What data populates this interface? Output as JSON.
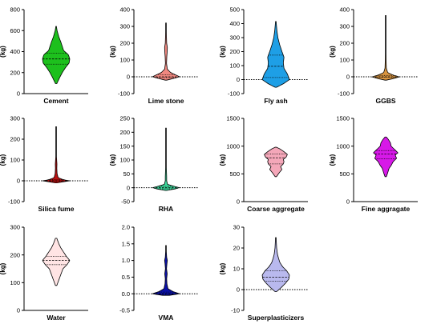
{
  "chart_data": [
    {
      "type": "violin",
      "xlabel": "Cement",
      "ylabel": "(kg)",
      "ylim": [
        0,
        800
      ],
      "yticks": [
        0,
        200,
        400,
        600,
        800
      ],
      "color": "#1dc01d",
      "range": [
        95,
        640
      ],
      "median": 330,
      "quartiles": [
        280,
        385
      ],
      "profile": [
        [
          95,
          0.05
        ],
        [
          150,
          0.25
        ],
        [
          200,
          0.45
        ],
        [
          250,
          0.7
        ],
        [
          290,
          0.95
        ],
        [
          330,
          1.0
        ],
        [
          370,
          0.9
        ],
        [
          410,
          0.55
        ],
        [
          450,
          0.45
        ],
        [
          490,
          0.35
        ],
        [
          540,
          0.2
        ],
        [
          600,
          0.07
        ],
        [
          640,
          0.02
        ]
      ]
    },
    {
      "type": "violin",
      "xlabel": "Lime stone",
      "ylabel": "(kg)",
      "ylim": [
        -100,
        400
      ],
      "yticks": [
        -100,
        0,
        100,
        200,
        300,
        400
      ],
      "color": "#f08880",
      "range": [
        -20,
        320
      ],
      "median": 0,
      "quartiles": [
        -5,
        12
      ],
      "profile": [
        [
          -20,
          0.05
        ],
        [
          -10,
          0.55
        ],
        [
          0,
          1.0
        ],
        [
          10,
          0.75
        ],
        [
          25,
          0.35
        ],
        [
          45,
          0.1
        ],
        [
          80,
          0.04
        ],
        [
          120,
          0.06
        ],
        [
          150,
          0.09
        ],
        [
          175,
          0.1
        ],
        [
          200,
          0.05
        ],
        [
          250,
          0.03
        ],
        [
          320,
          0.01
        ]
      ]
    },
    {
      "type": "violin",
      "xlabel": "Fly ash",
      "ylabel": "(kg)",
      "ylim": [
        -100,
        500
      ],
      "yticks": [
        -100,
        0,
        100,
        200,
        300,
        400,
        500
      ],
      "color": "#1e9fe6",
      "range": [
        -55,
        415
      ],
      "median": 95,
      "quartiles": [
        15,
        175
      ],
      "profile": [
        [
          -55,
          0.05
        ],
        [
          -30,
          0.55
        ],
        [
          0,
          1.0
        ],
        [
          40,
          0.85
        ],
        [
          80,
          0.6
        ],
        [
          120,
          0.55
        ],
        [
          160,
          0.6
        ],
        [
          200,
          0.45
        ],
        [
          250,
          0.28
        ],
        [
          300,
          0.15
        ],
        [
          350,
          0.08
        ],
        [
          415,
          0.02
        ]
      ]
    },
    {
      "type": "violin",
      "xlabel": "GGBS",
      "ylabel": "(kg)",
      "ylim": [
        -100,
        400
      ],
      "yticks": [
        -100,
        0,
        100,
        200,
        300,
        400
      ],
      "color": "#d99540",
      "range": [
        -20,
        365
      ],
      "median": 0,
      "quartiles": [
        -3,
        8
      ],
      "profile": [
        [
          -20,
          0.05
        ],
        [
          -8,
          0.7
        ],
        [
          0,
          1.0
        ],
        [
          10,
          0.55
        ],
        [
          25,
          0.15
        ],
        [
          50,
          0.05
        ],
        [
          100,
          0.03
        ],
        [
          200,
          0.015
        ],
        [
          365,
          0.01
        ]
      ]
    },
    {
      "type": "violin",
      "xlabel": "Silica fume",
      "ylabel": "(kg)",
      "ylim": [
        -100,
        300
      ],
      "yticks": [
        -100,
        0,
        100,
        200,
        300
      ],
      "color": "#b80f0f",
      "range": [
        -10,
        260
      ],
      "median": 0,
      "quartiles": [
        -2,
        5
      ],
      "profile": [
        [
          -10,
          0.05
        ],
        [
          -3,
          0.7
        ],
        [
          0,
          1.0
        ],
        [
          5,
          0.55
        ],
        [
          15,
          0.15
        ],
        [
          35,
          0.07
        ],
        [
          60,
          0.05
        ],
        [
          80,
          0.06
        ],
        [
          120,
          0.02
        ],
        [
          260,
          0.01
        ]
      ]
    },
    {
      "type": "violin",
      "xlabel": "RHA",
      "ylabel": "(kg)",
      "ylim": [
        -50,
        250
      ],
      "yticks": [
        -50,
        0,
        50,
        100,
        150,
        200,
        250
      ],
      "color": "#3ddc9f",
      "range": [
        -10,
        215
      ],
      "median": 0,
      "quartiles": [
        -4,
        5
      ],
      "profile": [
        [
          -10,
          0.05
        ],
        [
          -5,
          0.6
        ],
        [
          0,
          1.0
        ],
        [
          5,
          0.6
        ],
        [
          12,
          0.12
        ],
        [
          25,
          0.05
        ],
        [
          40,
          0.05
        ],
        [
          80,
          0.02
        ],
        [
          215,
          0.01
        ]
      ]
    },
    {
      "type": "violin",
      "xlabel": "Coarse aggregate",
      "ylabel": "(kg)",
      "ylim": [
        0,
        1500
      ],
      "yticks": [
        0,
        500,
        1000,
        1500
      ],
      "color": "#f4a7b9",
      "range": [
        450,
        980
      ],
      "median": 790,
      "quartiles": [
        680,
        860
      ],
      "profile": [
        [
          450,
          0.05
        ],
        [
          520,
          0.25
        ],
        [
          580,
          0.45
        ],
        [
          630,
          0.35
        ],
        [
          680,
          0.55
        ],
        [
          720,
          0.6
        ],
        [
          760,
          0.55
        ],
        [
          800,
          0.75
        ],
        [
          850,
          0.85
        ],
        [
          900,
          0.6
        ],
        [
          950,
          0.3
        ],
        [
          980,
          0.05
        ]
      ]
    },
    {
      "type": "violin",
      "xlabel": "Fine aggragate",
      "ylabel": "(kg)",
      "ylim": [
        0,
        1500
      ],
      "yticks": [
        0,
        500,
        1000,
        1500
      ],
      "color": "#d719e8",
      "range": [
        450,
        1165
      ],
      "median": 860,
      "quartiles": [
        770,
        920
      ],
      "profile": [
        [
          450,
          0.05
        ],
        [
          520,
          0.15
        ],
        [
          600,
          0.25
        ],
        [
          650,
          0.4
        ],
        [
          720,
          0.55
        ],
        [
          780,
          0.8
        ],
        [
          840,
          0.7
        ],
        [
          880,
          0.9
        ],
        [
          940,
          0.65
        ],
        [
          1000,
          0.4
        ],
        [
          1060,
          0.35
        ],
        [
          1120,
          0.2
        ],
        [
          1165,
          0.05
        ]
      ]
    },
    {
      "type": "violin",
      "xlabel": "Water",
      "ylabel": "(kg)",
      "ylim": [
        0,
        300
      ],
      "yticks": [
        0,
        100,
        200,
        300
      ],
      "color": "#ffe4e4",
      "range": [
        90,
        260
      ],
      "median": 180,
      "quartiles": [
        165,
        195
      ],
      "profile": [
        [
          90,
          0.05
        ],
        [
          110,
          0.2
        ],
        [
          130,
          0.35
        ],
        [
          150,
          0.5
        ],
        [
          165,
          0.8
        ],
        [
          180,
          1.0
        ],
        [
          195,
          0.75
        ],
        [
          210,
          0.55
        ],
        [
          225,
          0.35
        ],
        [
          240,
          0.2
        ],
        [
          260,
          0.05
        ]
      ]
    },
    {
      "type": "violin",
      "xlabel": "VMA",
      "ylabel": "",
      "ylim": [
        -0.5,
        2.0
      ],
      "yticks": [
        -0.5,
        0.0,
        0.5,
        1.0,
        1.5,
        2.0
      ],
      "color": "#0a10a8",
      "range": [
        -0.05,
        1.45
      ],
      "median": 0.0,
      "quartiles": [
        -0.02,
        0.05
      ],
      "profile": [
        [
          -0.05,
          0.25
        ],
        [
          0.0,
          1.0
        ],
        [
          0.06,
          0.55
        ],
        [
          0.15,
          0.15
        ],
        [
          0.3,
          0.07
        ],
        [
          0.45,
          0.05
        ],
        [
          0.6,
          0.09
        ],
        [
          0.75,
          0.04
        ],
        [
          0.9,
          0.07
        ],
        [
          1.0,
          0.1
        ],
        [
          1.1,
          0.05
        ],
        [
          1.3,
          0.02
        ],
        [
          1.45,
          0.01
        ]
      ]
    },
    {
      "type": "violin",
      "xlabel": "Superplasticizers",
      "ylabel": "(kg)",
      "ylim": [
        -10,
        30
      ],
      "yticks": [
        -10,
        0,
        10,
        20,
        30
      ],
      "color": "#b9b9ee",
      "range": [
        -1,
        25
      ],
      "median": 6,
      "quartiles": [
        4,
        9
      ],
      "profile": [
        [
          -1,
          0.05
        ],
        [
          1,
          0.4
        ],
        [
          3,
          0.7
        ],
        [
          5,
          0.95
        ],
        [
          7,
          1.0
        ],
        [
          9,
          0.8
        ],
        [
          11,
          0.5
        ],
        [
          13,
          0.3
        ],
        [
          15,
          0.2
        ],
        [
          17,
          0.12
        ],
        [
          20,
          0.06
        ],
        [
          25,
          0.02
        ]
      ]
    }
  ]
}
